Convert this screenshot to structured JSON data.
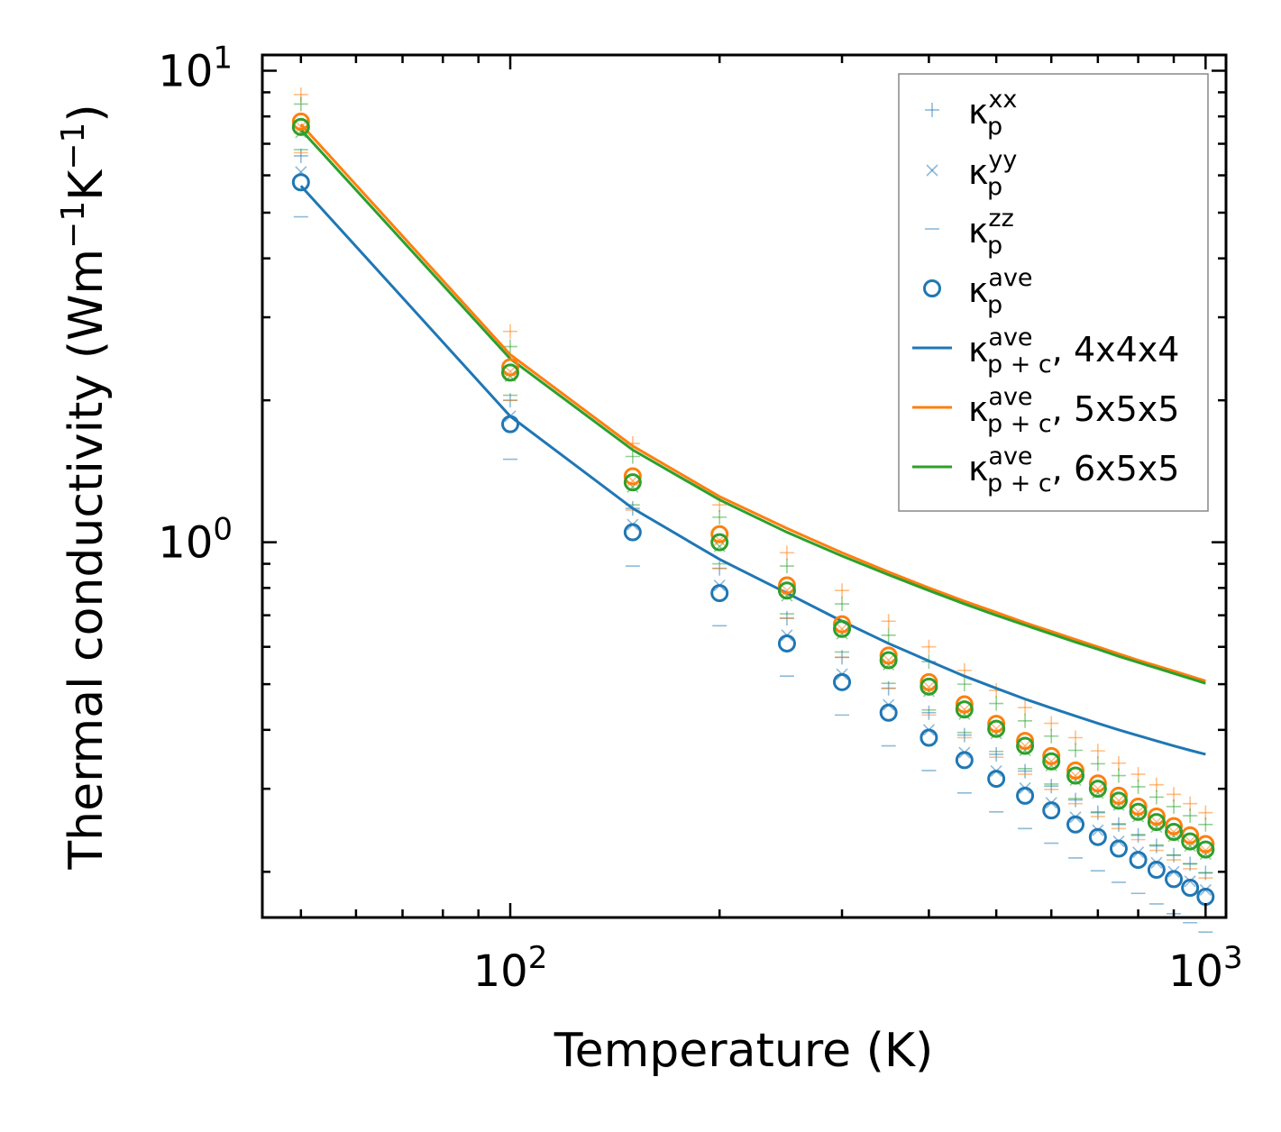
{
  "chart_data": {
    "type": "scatter",
    "xlabel": "Temperature (K)",
    "ylabel_main": "Thermal conductivity (Wm",
    "ylabel_sup1": "−1",
    "ylabel_mid": "K",
    "ylabel_sup2": "−1",
    "ylabel_end": ")",
    "xscale": "log",
    "yscale": "log",
    "xlim": [
      44,
      1070
    ],
    "ylim": [
      0.16,
      10.8
    ],
    "xticks": [
      {
        "value": 100,
        "base": "10",
        "exp": "2"
      },
      {
        "value": 1000,
        "base": "10",
        "exp": "3"
      }
    ],
    "yticks": [
      {
        "value": 1,
        "base": "10",
        "exp": "0"
      },
      {
        "value": 10,
        "base": "10",
        "exp": "1"
      }
    ],
    "legend_position": "top-right",
    "colors": {
      "c0": "#1f77b4",
      "c1": "#ff7f0e",
      "c2": "#2ca02c"
    },
    "temperatures": [
      50,
      100,
      150,
      200,
      250,
      300,
      350,
      400,
      450,
      500,
      550,
      600,
      650,
      700,
      750,
      800,
      850,
      900,
      950,
      1000
    ],
    "points": [
      {
        "name": "4x4x4",
        "color": "#1f77b4",
        "ave": [
          5.8,
          1.78,
          1.05,
          0.78,
          0.61,
          0.505,
          0.435,
          0.385,
          0.345,
          0.315,
          0.29,
          0.27,
          0.252,
          0.237,
          0.224,
          0.212,
          0.202,
          0.193,
          0.185,
          0.177
        ],
        "xx": [
          6.6,
          2.0,
          1.18,
          0.88,
          0.69,
          0.57,
          0.49,
          0.435,
          0.39,
          0.355,
          0.327,
          0.304,
          0.284,
          0.267,
          0.252,
          0.239,
          0.227,
          0.217,
          0.208,
          0.199
        ],
        "yy": [
          6.1,
          1.85,
          1.09,
          0.81,
          0.635,
          0.525,
          0.452,
          0.4,
          0.358,
          0.327,
          0.301,
          0.28,
          0.261,
          0.245,
          0.232,
          0.22,
          0.209,
          0.2,
          0.191,
          0.183
        ],
        "zz": [
          4.9,
          1.5,
          0.89,
          0.665,
          0.52,
          0.43,
          0.37,
          0.328,
          0.294,
          0.268,
          0.247,
          0.23,
          0.214,
          0.201,
          0.19,
          0.18,
          0.171,
          0.163,
          0.156,
          0.149
        ]
      },
      {
        "name": "5x5x5",
        "color": "#ff7f0e",
        "ave": [
          7.8,
          2.35,
          1.38,
          1.04,
          0.81,
          0.67,
          0.575,
          0.505,
          0.453,
          0.412,
          0.379,
          0.352,
          0.328,
          0.308,
          0.29,
          0.275,
          0.262,
          0.25,
          0.239,
          0.229
        ],
        "xx": [
          8.9,
          2.8,
          1.62,
          1.2,
          0.95,
          0.79,
          0.68,
          0.6,
          0.535,
          0.485,
          0.446,
          0.413,
          0.385,
          0.361,
          0.34,
          0.322,
          0.306,
          0.292,
          0.279,
          0.267
        ],
        "yy": [
          7.6,
          2.3,
          1.35,
          1.01,
          0.79,
          0.655,
          0.562,
          0.493,
          0.442,
          0.402,
          0.37,
          0.343,
          0.32,
          0.3,
          0.283,
          0.268,
          0.255,
          0.243,
          0.232,
          0.222
        ],
        "zz": [
          6.7,
          2.0,
          1.17,
          0.88,
          0.69,
          0.57,
          0.49,
          0.43,
          0.385,
          0.35,
          0.322,
          0.299,
          0.279,
          0.262,
          0.247,
          0.234,
          0.222,
          0.212,
          0.203,
          0.194
        ]
      },
      {
        "name": "6x5x5",
        "color": "#2ca02c",
        "ave": [
          7.6,
          2.29,
          1.34,
          1.0,
          0.79,
          0.655,
          0.562,
          0.494,
          0.442,
          0.402,
          0.37,
          0.343,
          0.32,
          0.3,
          0.283,
          0.268,
          0.255,
          0.243,
          0.232,
          0.223
        ],
        "xx": [
          8.5,
          2.6,
          1.52,
          1.13,
          0.89,
          0.74,
          0.635,
          0.558,
          0.5,
          0.455,
          0.418,
          0.388,
          0.362,
          0.339,
          0.32,
          0.303,
          0.288,
          0.275,
          0.263,
          0.252
        ],
        "yy": [
          7.4,
          2.25,
          1.31,
          0.98,
          0.77,
          0.64,
          0.55,
          0.483,
          0.432,
          0.393,
          0.362,
          0.336,
          0.313,
          0.294,
          0.277,
          0.262,
          0.249,
          0.238,
          0.227,
          0.218
        ],
        "zz": [
          6.8,
          2.05,
          1.2,
          0.9,
          0.705,
          0.585,
          0.502,
          0.441,
          0.395,
          0.36,
          0.331,
          0.307,
          0.286,
          0.268,
          0.253,
          0.24,
          0.228,
          0.217,
          0.208,
          0.199
        ]
      }
    ],
    "lines": [
      {
        "name": "4x4x4",
        "color": "#1f77b4",
        "values": [
          5.7,
          1.85,
          1.18,
          0.92,
          0.78,
          0.68,
          0.61,
          0.56,
          0.52,
          0.49,
          0.465,
          0.445,
          0.428,
          0.413,
          0.4,
          0.389,
          0.379,
          0.37,
          0.362,
          0.355
        ]
      },
      {
        "name": "5x5x5",
        "color": "#ff7f0e",
        "values": [
          7.7,
          2.5,
          1.6,
          1.25,
          1.07,
          0.95,
          0.865,
          0.8,
          0.75,
          0.71,
          0.675,
          0.647,
          0.622,
          0.6,
          0.58,
          0.562,
          0.547,
          0.533,
          0.52,
          0.508
        ]
      },
      {
        "name": "6x5x5",
        "color": "#2ca02c",
        "values": [
          7.5,
          2.45,
          1.57,
          1.23,
          1.05,
          0.935,
          0.853,
          0.79,
          0.74,
          0.7,
          0.667,
          0.639,
          0.614,
          0.593,
          0.573,
          0.556,
          0.541,
          0.527,
          0.514,
          0.502
        ]
      }
    ],
    "legend": [
      {
        "kind": "plus",
        "label": "κ",
        "sub": "p",
        "sup": "xx",
        "suffix": ""
      },
      {
        "kind": "cross",
        "label": "κ",
        "sub": "p",
        "sup": "yy",
        "suffix": ""
      },
      {
        "kind": "dash",
        "label": "κ",
        "sub": "p",
        "sup": "zz",
        "suffix": ""
      },
      {
        "kind": "circle",
        "label": "κ",
        "sub": "p",
        "sup": "ave",
        "suffix": ""
      },
      {
        "kind": "line0",
        "label": "κ",
        "sub": "p + c",
        "sup": "ave",
        "suffix": ", 4x4x4"
      },
      {
        "kind": "line1",
        "label": "κ",
        "sub": "p + c",
        "sup": "ave",
        "suffix": ", 5x5x5"
      },
      {
        "kind": "line2",
        "label": "κ",
        "sub": "p + c",
        "sup": "ave",
        "suffix": ", 6x5x5"
      }
    ]
  }
}
